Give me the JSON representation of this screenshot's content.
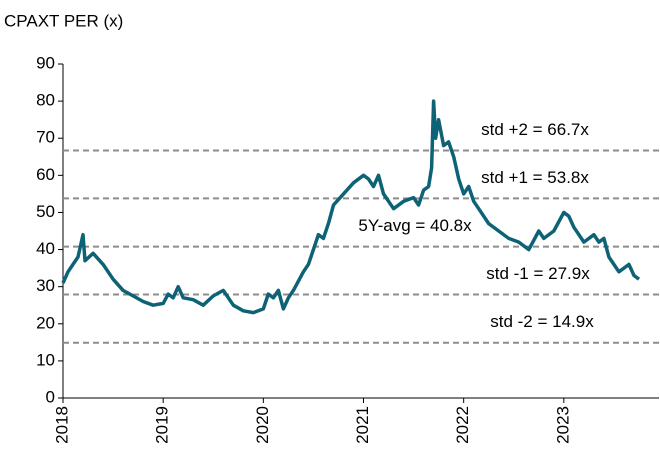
{
  "chart_data": {
    "type": "line",
    "title": "CPAXT PER (x)",
    "x": [
      2018.0,
      2018.05,
      2018.1,
      2018.15,
      2018.2,
      2018.22,
      2018.3,
      2018.4,
      2018.5,
      2018.6,
      2018.7,
      2018.8,
      2018.9,
      2019.0,
      2019.05,
      2019.1,
      2019.15,
      2019.2,
      2019.3,
      2019.4,
      2019.5,
      2019.6,
      2019.7,
      2019.8,
      2019.9,
      2020.0,
      2020.05,
      2020.1,
      2020.15,
      2020.2,
      2020.25,
      2020.3,
      2020.4,
      2020.45,
      2020.5,
      2020.55,
      2020.6,
      2020.65,
      2020.7,
      2020.8,
      2020.9,
      2021.0,
      2021.05,
      2021.1,
      2021.15,
      2021.2,
      2021.3,
      2021.4,
      2021.5,
      2021.55,
      2021.6,
      2021.65,
      2021.68,
      2021.7,
      2021.72,
      2021.75,
      2021.8,
      2021.85,
      2021.9,
      2021.95,
      2022.0,
      2022.05,
      2022.1,
      2022.15,
      2022.25,
      2022.35,
      2022.45,
      2022.55,
      2022.65,
      2022.75,
      2022.8,
      2022.9,
      2023.0,
      2023.05,
      2023.1,
      2023.15,
      2023.2,
      2023.3,
      2023.35,
      2023.4,
      2023.45,
      2023.5,
      2023.55,
      2023.6,
      2023.65,
      2023.7,
      2023.75
    ],
    "series": [
      {
        "name": "CPAXT PER",
        "color": "#0e6276",
        "values": [
          31,
          34,
          36,
          38,
          44,
          37,
          39,
          36,
          32,
          29,
          27.5,
          26,
          25,
          25.5,
          28,
          27,
          30,
          27,
          26.5,
          25,
          27.5,
          29,
          25,
          23.5,
          23,
          24,
          28,
          27,
          29,
          24,
          27,
          29,
          34,
          36,
          40,
          44,
          43,
          47,
          52,
          55,
          58,
          60,
          59,
          57,
          60,
          55,
          51,
          53,
          54,
          52,
          56,
          57,
          62,
          80,
          70,
          75,
          68,
          69,
          65,
          59,
          55,
          57,
          53,
          51,
          47,
          45,
          43,
          42,
          40,
          45,
          43,
          45,
          50,
          49,
          46,
          44,
          42,
          44,
          42,
          43,
          38,
          36,
          34,
          35,
          36,
          33,
          32
        ]
      }
    ],
    "reference_lines": [
      {
        "value": 66.7,
        "label": "std +2 = 66.7x"
      },
      {
        "value": 53.8,
        "label": "std +1 = 53.8x"
      },
      {
        "value": 40.8,
        "label": "5Y-avg = 40.8x"
      },
      {
        "value": 27.9,
        "label": "std -1 = 27.9x"
      },
      {
        "value": 14.9,
        "label": "std -2 = 14.9x"
      }
    ],
    "reference_color": "#8c8c8c",
    "xlim": [
      2018,
      2023.95
    ],
    "xticks": [
      2018,
      2019,
      2020,
      2021,
      2022,
      2023
    ],
    "ylim": [
      0,
      90
    ],
    "yticks": [
      0,
      10,
      20,
      30,
      40,
      50,
      60,
      70,
      80,
      90
    ]
  }
}
